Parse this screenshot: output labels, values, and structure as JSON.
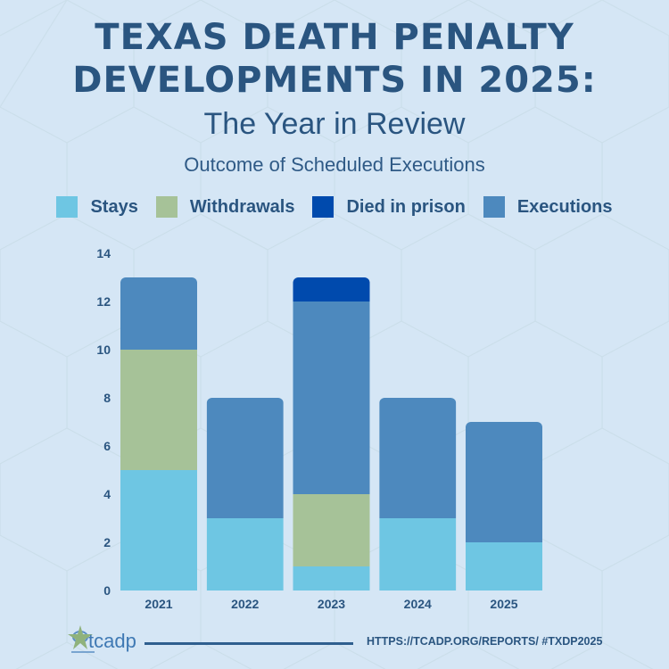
{
  "header": {
    "title_line1": "TEXAS DEATH PENALTY",
    "title_line2": "DEVELOPMENTS IN 2025:",
    "subtitle": "The Year in Review",
    "chart_title": "Outcome of Scheduled Executions"
  },
  "footer": {
    "logo_text": "tcadp",
    "url": "HTTPS://TCADP.ORG/REPORTS/ #TXDP2025"
  },
  "colors": {
    "text": "#2a5580",
    "background": "#d5e6f5"
  },
  "chart_data": {
    "type": "bar",
    "stacked": true,
    "title": "Outcome of Scheduled Executions",
    "xlabel": "",
    "ylabel": "",
    "categories": [
      "2021",
      "2022",
      "2023",
      "2024",
      "2025"
    ],
    "ylim": [
      0,
      14
    ],
    "yticks": [
      0,
      2,
      4,
      6,
      8,
      10,
      12,
      14
    ],
    "legend_position": "top",
    "grid": false,
    "series": [
      {
        "name": "Stays",
        "color": "#6ec6e3",
        "values": [
          5,
          3,
          1,
          3,
          2
        ]
      },
      {
        "name": "Withdrawals",
        "color": "#a6c298",
        "values": [
          5,
          0,
          3,
          0,
          0
        ]
      },
      {
        "name": "Executions",
        "color": "#4d89be",
        "values": [
          3,
          5,
          8,
          5,
          5
        ]
      },
      {
        "name": "Died in prison",
        "color": "#004aad",
        "values": [
          0,
          0,
          1,
          0,
          0
        ]
      }
    ],
    "legend_order": [
      "Stays",
      "Withdrawals",
      "Died in prison",
      "Executions"
    ]
  }
}
